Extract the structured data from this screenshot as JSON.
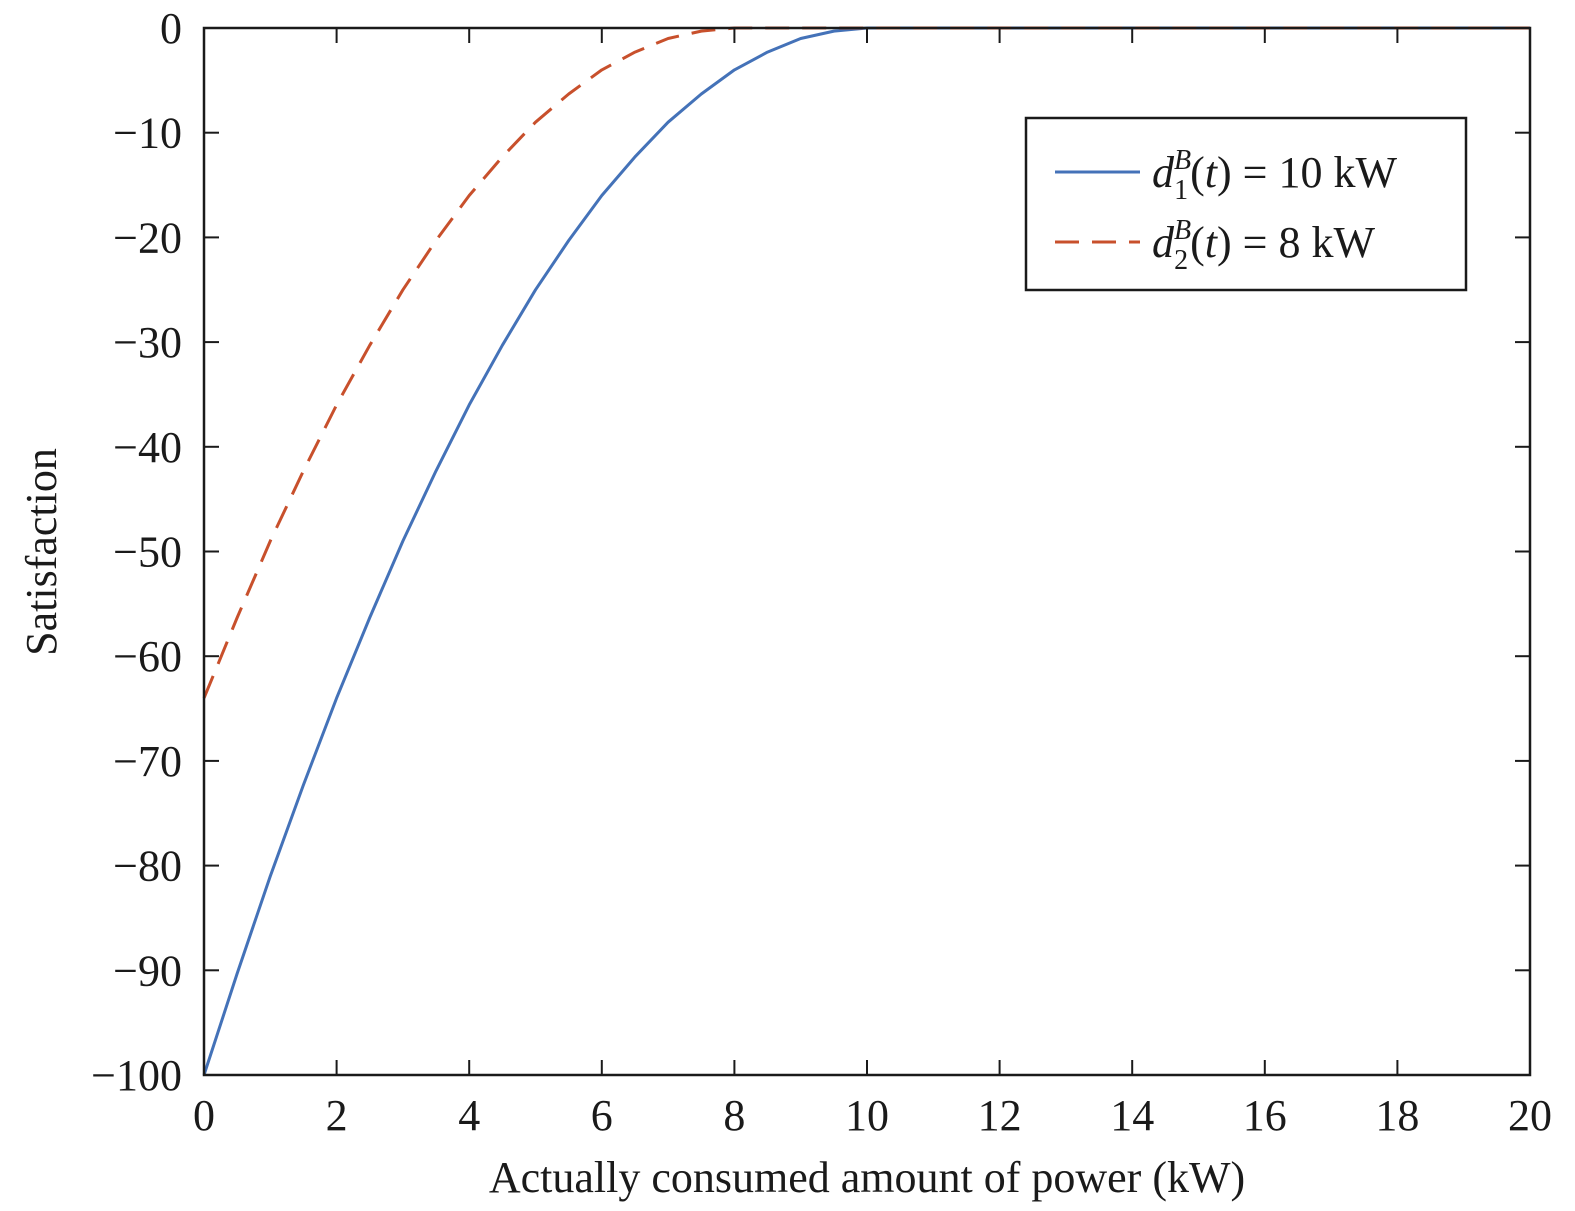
{
  "chart_data": {
    "type": "line",
    "title": "",
    "xlabel": "Actually consumed amount of power (kW)",
    "ylabel": "Satisfaction",
    "xlim": [
      0,
      20
    ],
    "ylim": [
      -100,
      0
    ],
    "xticks": [
      0,
      2,
      4,
      6,
      8,
      10,
      12,
      14,
      16,
      18,
      20
    ],
    "yticks": [
      0,
      -10,
      -20,
      -30,
      -40,
      -50,
      -60,
      -70,
      -80,
      -90,
      -100
    ],
    "xtick_labels": [
      "0",
      "2",
      "4",
      "6",
      "8",
      "10",
      "12",
      "14",
      "16",
      "18",
      "20"
    ],
    "ytick_labels": [
      "0",
      "−10",
      "−20",
      "−30",
      "−40",
      "−50",
      "−60",
      "−70",
      "−80",
      "−90",
      "−100"
    ],
    "grid": false,
    "legend": {
      "placement": "top-right",
      "entries": [
        {
          "series": 0,
          "symbol": "d",
          "subscript": "1",
          "superscript": "B",
          "rest": "(t) = 10 kW"
        },
        {
          "series": 1,
          "symbol": "d",
          "subscript": "2",
          "superscript": "B",
          "rest": "(t) = 8 kW"
        }
      ]
    },
    "series": [
      {
        "color": "#4472b8",
        "dash": "solid",
        "x": [
          0,
          0.5,
          1,
          1.5,
          2,
          2.5,
          3,
          3.5,
          4,
          4.5,
          5,
          5.5,
          6,
          6.5,
          7,
          7.5,
          8,
          8.5,
          9,
          9.5,
          10,
          12,
          14,
          16,
          18,
          20
        ],
        "y": [
          -100,
          -90.3,
          -81,
          -72.3,
          -64,
          -56.3,
          -49,
          -42.3,
          -36,
          -30.3,
          -25,
          -20.3,
          -16,
          -12.3,
          -9,
          -6.3,
          -4,
          -2.3,
          -1,
          -0.3,
          0,
          0,
          0,
          0,
          0,
          0
        ]
      },
      {
        "color": "#c8502c",
        "dash": "dashed",
        "x": [
          0,
          0.5,
          1,
          1.5,
          2,
          2.5,
          3,
          3.5,
          4,
          4.5,
          5,
          5.5,
          6,
          6.5,
          7,
          7.5,
          8,
          10,
          12,
          14,
          16,
          18,
          20
        ],
        "y": [
          -64,
          -56.3,
          -49,
          -42.3,
          -36,
          -30.3,
          -25,
          -20.3,
          -16,
          -12.3,
          -9,
          -6.3,
          -4,
          -2.3,
          -1,
          -0.3,
          0,
          0,
          0,
          0,
          0,
          0,
          0
        ]
      }
    ]
  }
}
